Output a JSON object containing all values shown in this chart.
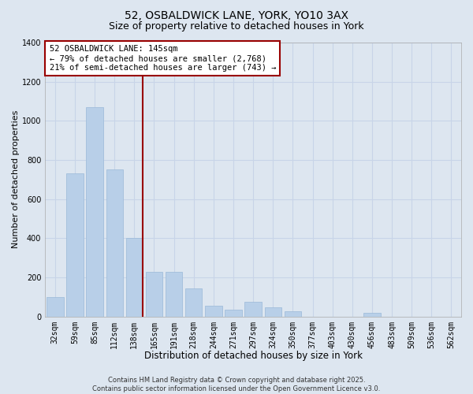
{
  "title1": "52, OSBALDWICK LANE, YORK, YO10 3AX",
  "title2": "Size of property relative to detached houses in York",
  "xlabel": "Distribution of detached houses by size in York",
  "ylabel": "Number of detached properties",
  "categories": [
    "32sqm",
    "59sqm",
    "85sqm",
    "112sqm",
    "138sqm",
    "165sqm",
    "191sqm",
    "218sqm",
    "244sqm",
    "271sqm",
    "297sqm",
    "324sqm",
    "350sqm",
    "377sqm",
    "403sqm",
    "430sqm",
    "456sqm",
    "483sqm",
    "509sqm",
    "536sqm",
    "562sqm"
  ],
  "values": [
    100,
    730,
    1070,
    750,
    400,
    230,
    230,
    145,
    55,
    35,
    75,
    45,
    25,
    0,
    0,
    0,
    18,
    0,
    0,
    0,
    0
  ],
  "bar_color": "#b8cfe8",
  "bar_edge_color": "#9ab8d8",
  "vline_color": "#990000",
  "annotation_text": "52 OSBALDWICK LANE: 145sqm\n← 79% of detached houses are smaller (2,768)\n21% of semi-detached houses are larger (743) →",
  "annotation_box_color": "#ffffff",
  "annotation_box_edge_color": "#990000",
  "grid_color": "#c8d4e8",
  "background_color": "#dde6f0",
  "ylim": [
    0,
    1400
  ],
  "yticks": [
    0,
    200,
    400,
    600,
    800,
    1000,
    1200,
    1400
  ],
  "footer": "Contains HM Land Registry data © Crown copyright and database right 2025.\nContains public sector information licensed under the Open Government Licence v3.0.",
  "title1_fontsize": 10,
  "title2_fontsize": 9,
  "xlabel_fontsize": 8.5,
  "ylabel_fontsize": 8,
  "tick_fontsize": 7,
  "annotation_fontsize": 7.5,
  "footer_fontsize": 6
}
